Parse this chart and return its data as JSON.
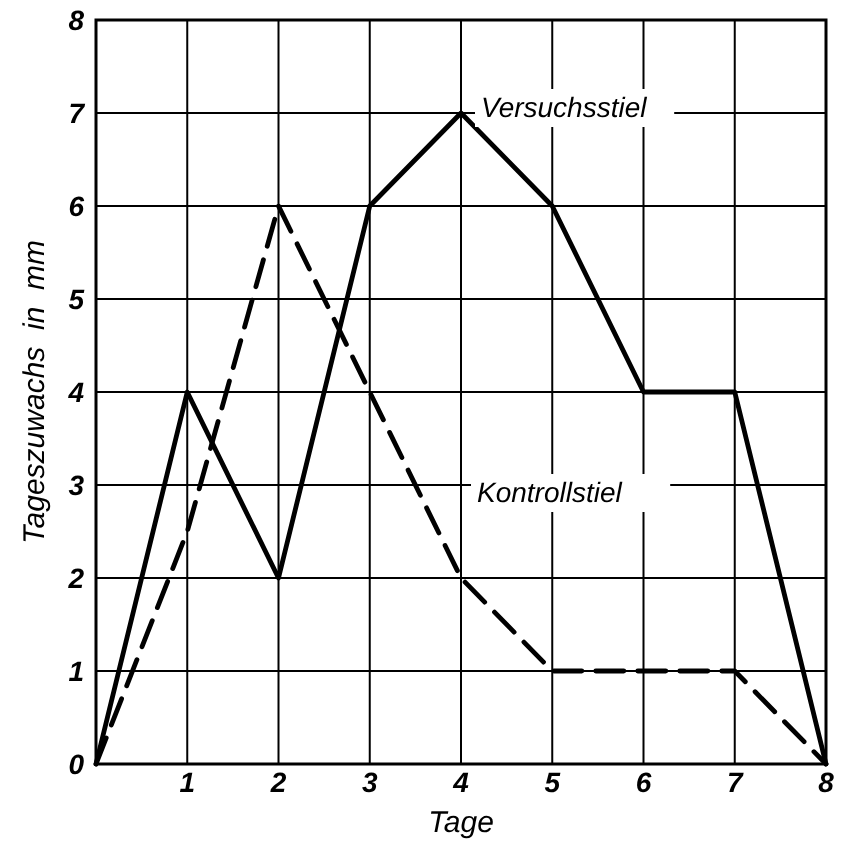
{
  "chart_data": {
    "type": "line",
    "xlabel": "Tage",
    "ylabel": "Tageszuwachs  in  mm",
    "x": [
      0,
      1,
      2,
      3,
      4,
      5,
      6,
      7,
      8
    ],
    "series": [
      {
        "name": "Versuchsstiel",
        "color": "#000000",
        "values": [
          0,
          4,
          2,
          6,
          7,
          6,
          4,
          4,
          0
        ],
        "line_style": "solid"
      },
      {
        "name": "Kontrollstiel",
        "color": "#000000",
        "values": [
          0,
          2.5,
          6,
          4,
          2,
          1,
          1,
          1,
          0
        ],
        "line_style": "dashed"
      }
    ],
    "xlim": [
      0,
      8
    ],
    "xticks": [
      {
        "value": 0,
        "label": null
      },
      1,
      2,
      3,
      4,
      5,
      6,
      7,
      8
    ],
    "ylim": [
      0,
      8
    ],
    "yticks": [
      0,
      1,
      2,
      3,
      4,
      5,
      6,
      7,
      8
    ],
    "grid": true,
    "marker": "none"
  }
}
